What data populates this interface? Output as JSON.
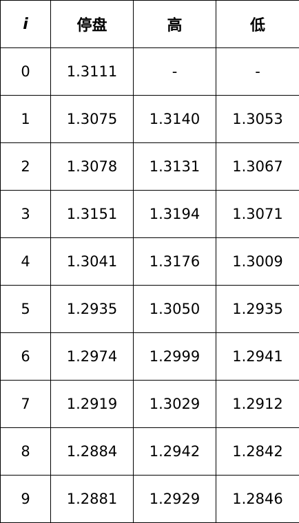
{
  "table": {
    "headers": [
      "i",
      "停盘",
      "高",
      "低"
    ],
    "rows": [
      [
        "0",
        "1.3111",
        "-",
        "-"
      ],
      [
        "1",
        "1.3075",
        "1.3140",
        "1.3053"
      ],
      [
        "2",
        "1.3078",
        "1.3131",
        "1.3067"
      ],
      [
        "3",
        "1.3151",
        "1.3194",
        "1.3071"
      ],
      [
        "4",
        "1.3041",
        "1.3176",
        "1.3009"
      ],
      [
        "5",
        "1.2935",
        "1.3050",
        "1.2935"
      ],
      [
        "6",
        "1.2974",
        "1.2999",
        "1.2941"
      ],
      [
        "7",
        "1.2919",
        "1.3029",
        "1.2912"
      ],
      [
        "8",
        "1.2884",
        "1.2942",
        "1.2842"
      ],
      [
        "9",
        "1.2881",
        "1.2929",
        "1.2846"
      ]
    ]
  }
}
